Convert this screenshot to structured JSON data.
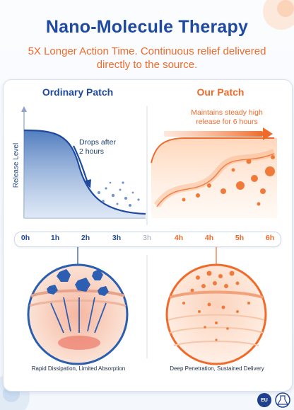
{
  "header": {
    "title": "Nano-Molecule Therapy",
    "subtitle": "5X Longer Action Time. Continuous relief delivered directly to the source."
  },
  "comparison": {
    "left": {
      "title": "Ordinary Patch",
      "annotation_line1": "Drops after",
      "annotation_line2": "2 hours",
      "caption": "Rapid Dissipation, Limited Absorption"
    },
    "right": {
      "title": "Our Patch",
      "annotation_line1": "Maintains steady high",
      "annotation_line2": "release for 6 hours",
      "caption": "Deep Penetration, Sustained Delivery"
    },
    "y_axis_label": "Release Level"
  },
  "timeline": {
    "left_ticks": [
      "0h",
      "1h",
      "2h",
      "3h"
    ],
    "divider_tick": "3h",
    "right_ticks": [
      "4h",
      "4h",
      "5h",
      "6h"
    ]
  },
  "badges": {
    "eu": "EU"
  },
  "colors": {
    "blue": "#1f4aa0",
    "orange": "#f06a2a",
    "light_blue": "#8fb3e0",
    "light_orange": "#ffd1b3"
  }
}
